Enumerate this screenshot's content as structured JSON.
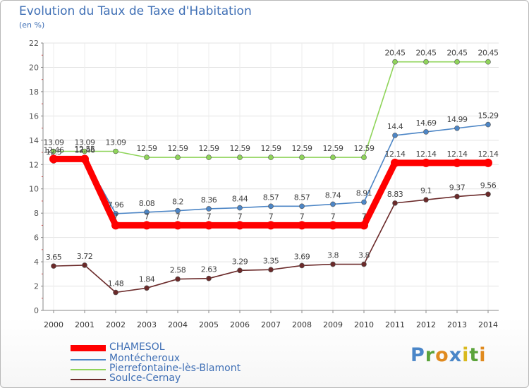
{
  "title": "Evolution du Taux de Taxe d'Habitation",
  "unit": "(en %)",
  "brand": {
    "letters": [
      {
        "ch": "P",
        "color": "#4a86c8"
      },
      {
        "ch": "r",
        "color": "#5aa33a"
      },
      {
        "ch": "o",
        "color": "#e08a1e"
      },
      {
        "ch": "x",
        "color": "#4a86c8"
      },
      {
        "ch": "i",
        "color": "#d9b91c"
      },
      {
        "ch": "t",
        "color": "#5aa33a"
      },
      {
        "ch": "i",
        "color": "#e08a1e"
      }
    ]
  },
  "chart_data": {
    "type": "line",
    "x": [
      "2000",
      "2001",
      "2002",
      "2003",
      "2004",
      "2005",
      "2006",
      "2007",
      "2008",
      "2009",
      "2010",
      "2011",
      "2012",
      "2013",
      "2014"
    ],
    "ylim": [
      0,
      22
    ],
    "yticks": [
      0,
      2,
      4,
      6,
      8,
      10,
      12,
      14,
      16,
      18,
      20,
      22
    ],
    "grid": true,
    "legend": "bottom-left",
    "series": [
      {
        "name": "CHAMESOL",
        "color": "#ff0000",
        "values": [
          12.46,
          12.46,
          7,
          7,
          7,
          7,
          7,
          7,
          7,
          7,
          7,
          12.14,
          12.14,
          12.14,
          12.14
        ],
        "labels": [
          "12.46",
          "12.46",
          "7",
          "7",
          "7",
          "7",
          "7",
          "7",
          "7",
          "7",
          "7",
          "12.14",
          "12.14",
          "12.14",
          "12.14"
        ]
      },
      {
        "name": "Montécheroux",
        "color": "#4d86c6",
        "values": [
          12.3,
          12.55,
          7.96,
          8.08,
          8.2,
          8.36,
          8.44,
          8.57,
          8.57,
          8.74,
          8.91,
          14.4,
          14.69,
          14.99,
          15.29
        ],
        "labels": [
          "12.3",
          "12.55",
          "7.96",
          "8.08",
          "8.2",
          "8.36",
          "8.44",
          "8.57",
          "8.57",
          "8.74",
          "8.91",
          "14.4",
          "14.69",
          "14.99",
          "15.29"
        ]
      },
      {
        "name": "Pierrefontaine-lès-Blamont",
        "color": "#8fd45a",
        "values": [
          13.09,
          13.09,
          13.09,
          12.59,
          12.59,
          12.59,
          12.59,
          12.59,
          12.59,
          12.59,
          12.59,
          20.45,
          20.45,
          20.45,
          20.45
        ],
        "labels": [
          "13.09",
          "13.09",
          "13.09",
          "12.59",
          "12.59",
          "12.59",
          "12.59",
          "12.59",
          "12.59",
          "12.59",
          "12.59",
          "20.45",
          "20.45",
          "20.45",
          "20.45"
        ]
      },
      {
        "name": "Soulce-Cernay",
        "color": "#6b2a2a",
        "values": [
          3.65,
          3.72,
          1.48,
          1.84,
          2.58,
          2.63,
          3.29,
          3.35,
          3.69,
          3.8,
          3.8,
          8.83,
          9.1,
          9.37,
          9.56
        ],
        "labels": [
          "3.65",
          "3.72",
          "1.48",
          "1.84",
          "2.58",
          "2.63",
          "3.29",
          "3.35",
          "3.69",
          "3.8",
          "3.8",
          "8.83",
          "9.1",
          "9.37",
          "9.56"
        ]
      }
    ]
  }
}
